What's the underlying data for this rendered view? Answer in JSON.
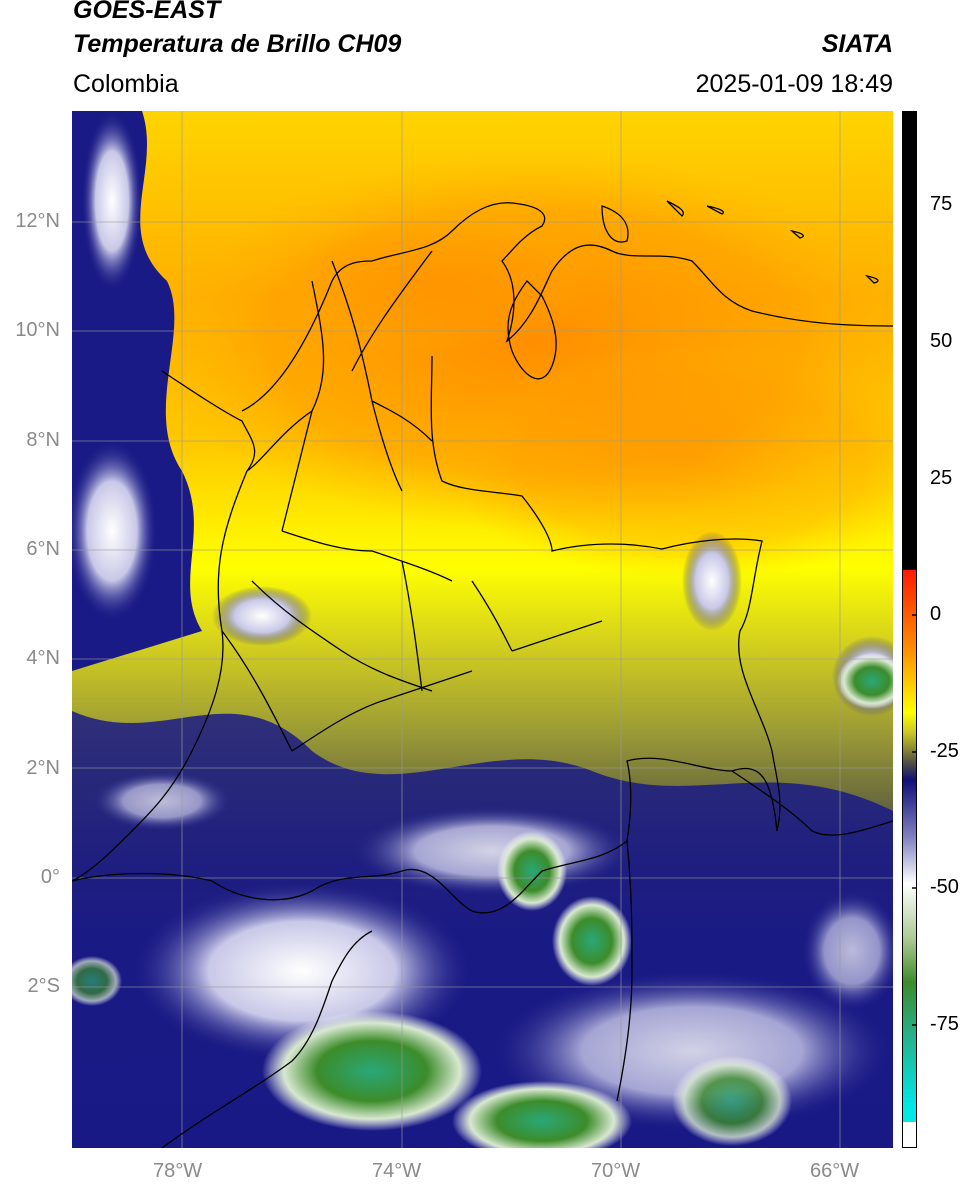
{
  "header": {
    "title_line1": "GOES-EAST",
    "title_line2": "Temperatura de Brillo CH09",
    "organization": "SIATA",
    "region": "Colombia",
    "timestamp": "2025-01-09 18:49"
  },
  "map": {
    "lat_labels": [
      "12°N",
      "10°N",
      "8°N",
      "6°N",
      "4°N",
      "2°N",
      "0°",
      "2°S"
    ],
    "lon_labels": [
      "78°W",
      "74°W",
      "70°W",
      "66°W"
    ],
    "gridlines": true
  },
  "colorbar": {
    "tick_labels": [
      "75",
      "50",
      "25",
      "0",
      "-25",
      "-50",
      "-75"
    ],
    "colors": {
      "warm_max": "#000000",
      "red": "#ff1a00",
      "orange": "#ff9000",
      "yellow": "#ffff00",
      "olive": "#8a8a30",
      "gray": "#4a4a4a",
      "navy": "#10107a",
      "white": "#ffffff",
      "green": "#3c8c2a",
      "teal": "#26b08a",
      "cyan": "#00e8e8"
    }
  }
}
